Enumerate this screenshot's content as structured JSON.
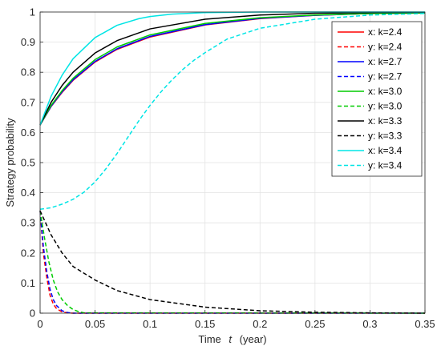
{
  "chart_data": {
    "type": "line",
    "xlabel_prefix": "Time",
    "xlabel_var": "t",
    "xlabel_unit": "(year)",
    "ylabel": "Strategy probability",
    "xlim": [
      0,
      0.35
    ],
    "ylim": [
      0,
      1
    ],
    "xticks": [
      "0",
      "0.05",
      "0.1",
      "0.15",
      "0.2",
      "0.25",
      "0.3",
      "0.35"
    ],
    "yticks": [
      "0",
      "0.1",
      "0.2",
      "0.3",
      "0.4",
      "0.5",
      "0.6",
      "0.7",
      "0.8",
      "0.9",
      "1"
    ],
    "grid": true,
    "legend_position": "top-right",
    "series": [
      {
        "name": "x: k=2.4",
        "color": "#ff0000",
        "style": "solid",
        "x": [
          0,
          0.01,
          0.02,
          0.03,
          0.05,
          0.07,
          0.1,
          0.15,
          0.2,
          0.25,
          0.3,
          0.35
        ],
        "y": [
          0.625,
          0.686,
          0.733,
          0.773,
          0.834,
          0.876,
          0.917,
          0.957,
          0.978,
          0.989,
          0.995,
          0.997
        ]
      },
      {
        "name": "y: k=2.4",
        "color": "#ff0000",
        "style": "dashed",
        "x": [
          0,
          0.003,
          0.006,
          0.009,
          0.012,
          0.015,
          0.02,
          0.025,
          0.03,
          0.35
        ],
        "y": [
          0.34,
          0.2,
          0.12,
          0.06,
          0.03,
          0.015,
          0.004,
          0.001,
          0,
          0
        ]
      },
      {
        "name": "x: k=2.7",
        "color": "#0000ff",
        "style": "solid",
        "x": [
          0,
          0.01,
          0.02,
          0.03,
          0.05,
          0.07,
          0.1,
          0.15,
          0.2,
          0.25,
          0.3,
          0.35
        ],
        "y": [
          0.625,
          0.687,
          0.735,
          0.775,
          0.836,
          0.878,
          0.919,
          0.958,
          0.979,
          0.989,
          0.995,
          0.997
        ]
      },
      {
        "name": "y: k=2.7",
        "color": "#0000ff",
        "style": "dashed",
        "x": [
          0,
          0.003,
          0.006,
          0.009,
          0.012,
          0.015,
          0.02,
          0.025,
          0.03,
          0.35
        ],
        "y": [
          0.34,
          0.22,
          0.14,
          0.08,
          0.045,
          0.025,
          0.008,
          0.002,
          0,
          0
        ]
      },
      {
        "name": "x: k=3.0",
        "color": "#00cc00",
        "style": "solid",
        "x": [
          0,
          0.01,
          0.02,
          0.03,
          0.05,
          0.07,
          0.1,
          0.15,
          0.2,
          0.25,
          0.3,
          0.35
        ],
        "y": [
          0.625,
          0.69,
          0.739,
          0.78,
          0.842,
          0.884,
          0.924,
          0.962,
          0.981,
          0.99,
          0.995,
          0.997
        ]
      },
      {
        "name": "y: k=3.0",
        "color": "#00cc00",
        "style": "dashed",
        "x": [
          0,
          0.004,
          0.008,
          0.012,
          0.016,
          0.02,
          0.025,
          0.03,
          0.035,
          0.04,
          0.35
        ],
        "y": [
          0.34,
          0.25,
          0.17,
          0.11,
          0.07,
          0.045,
          0.025,
          0.012,
          0.005,
          0.001,
          0
        ]
      },
      {
        "name": "x: k=3.3",
        "color": "#000000",
        "style": "solid",
        "x": [
          0,
          0.01,
          0.02,
          0.03,
          0.05,
          0.07,
          0.1,
          0.15,
          0.2,
          0.25,
          0.3,
          0.35
        ],
        "y": [
          0.625,
          0.7,
          0.756,
          0.8,
          0.864,
          0.905,
          0.944,
          0.976,
          0.99,
          0.996,
          0.998,
          0.999
        ]
      },
      {
        "name": "y: k=3.3",
        "color": "#000000",
        "style": "dashed",
        "x": [
          0,
          0.01,
          0.02,
          0.03,
          0.05,
          0.07,
          0.1,
          0.15,
          0.2,
          0.25,
          0.3,
          0.35
        ],
        "y": [
          0.34,
          0.26,
          0.2,
          0.155,
          0.11,
          0.075,
          0.045,
          0.02,
          0.008,
          0.003,
          0.001,
          0
        ]
      },
      {
        "name": "x: k=3.4",
        "color": "#00e5e5",
        "style": "solid",
        "x": [
          0,
          0.01,
          0.02,
          0.03,
          0.05,
          0.07,
          0.09,
          0.1,
          0.12,
          0.15,
          0.2,
          0.25,
          0.3,
          0.35
        ],
        "y": [
          0.625,
          0.72,
          0.79,
          0.845,
          0.915,
          0.956,
          0.978,
          0.985,
          0.993,
          0.998,
          1.0,
          1.0,
          1.0,
          1.0
        ]
      },
      {
        "name": "y: k=3.4",
        "color": "#00e5e5",
        "style": "dashed",
        "x": [
          0,
          0.01,
          0.02,
          0.03,
          0.04,
          0.05,
          0.06,
          0.07,
          0.08,
          0.09,
          0.1,
          0.11,
          0.12,
          0.13,
          0.14,
          0.15,
          0.17,
          0.2,
          0.25,
          0.3,
          0.35
        ],
        "y": [
          0.345,
          0.35,
          0.362,
          0.378,
          0.402,
          0.436,
          0.48,
          0.53,
          0.585,
          0.64,
          0.69,
          0.735,
          0.775,
          0.81,
          0.84,
          0.865,
          0.91,
          0.946,
          0.976,
          0.99,
          0.995
        ]
      }
    ]
  }
}
